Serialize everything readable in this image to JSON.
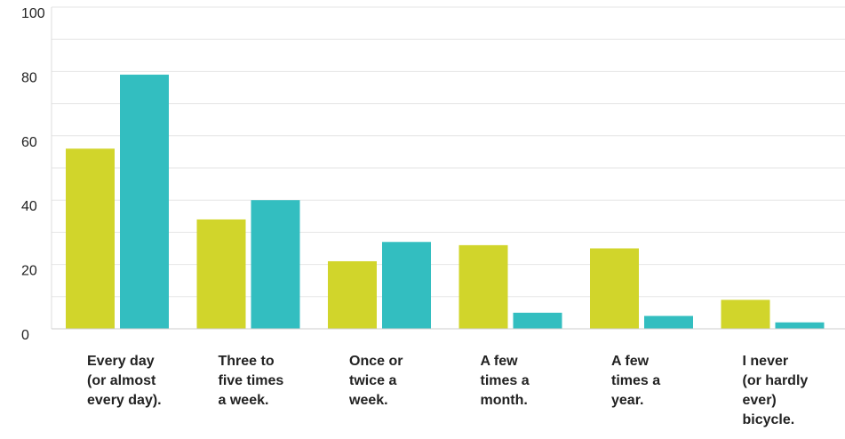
{
  "chart_data": {
    "type": "bar",
    "categories": [
      [
        "Every day",
        "(or almost",
        "every day)."
      ],
      [
        "Three to",
        "five times",
        "a week."
      ],
      [
        "Once or",
        "twice a",
        "week."
      ],
      [
        "A few",
        "times a",
        "month."
      ],
      [
        "A few",
        "times a",
        "year."
      ],
      [
        "I never",
        "(or hardly",
        "ever)",
        "bicycle."
      ]
    ],
    "series": [
      {
        "values": [
          56,
          34,
          21,
          26,
          25,
          9
        ],
        "color": "#d1d52b"
      },
      {
        "values": [
          79,
          40,
          27,
          5,
          4,
          2
        ],
        "color": "#33bec0"
      }
    ],
    "ylim": [
      0,
      100
    ],
    "yticks": [
      "0",
      "20",
      "40",
      "60",
      "80",
      "100"
    ],
    "grid": true,
    "title": "",
    "xlabel": "",
    "ylabel": ""
  }
}
